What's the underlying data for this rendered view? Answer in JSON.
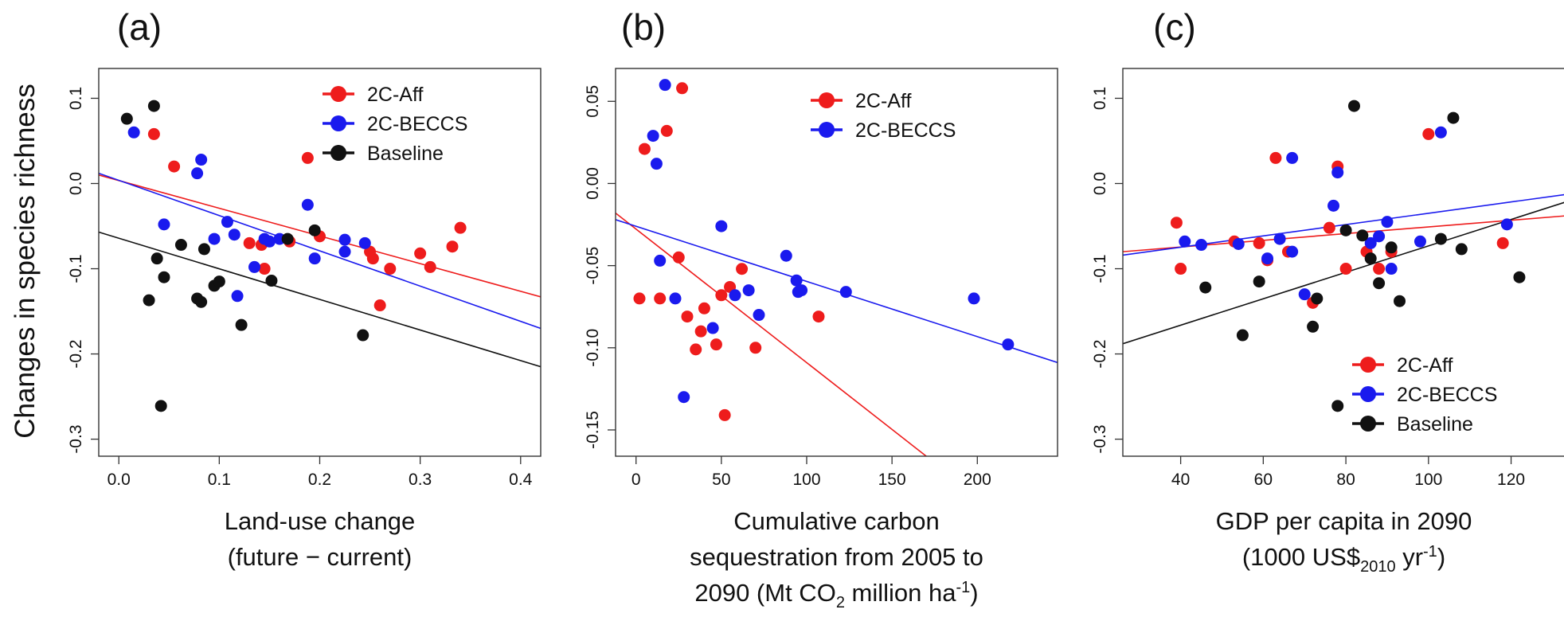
{
  "figure": {
    "ylabel": "Changes in species richness"
  },
  "chart_data": [
    {
      "type": "scatter",
      "panel_label": "(a)",
      "xlabel": [
        "Land-use change",
        "(future − current)"
      ],
      "xlim": [
        -0.02,
        0.42
      ],
      "ylim": [
        -0.32,
        0.135
      ],
      "xticks": [
        0.0,
        0.1,
        0.2,
        0.3,
        0.4
      ],
      "xtick_labels": [
        "0.0",
        "0.1",
        "0.2",
        "0.3",
        "0.4"
      ],
      "yticks": [
        0.1,
        0.0,
        -0.1,
        -0.2,
        -0.3
      ],
      "ytick_labels": [
        "0.1",
        "0.0",
        "-0.1",
        "-0.2",
        "-0.3"
      ],
      "legend": {
        "position": "top-right",
        "entries": [
          "2C-Aff",
          "2C-BECCS",
          "Baseline"
        ]
      },
      "series": [
        {
          "name": "2C-Aff",
          "color": "#ee1c1c",
          "points": [
            [
              0.035,
              0.058
            ],
            [
              0.055,
              0.02
            ],
            [
              0.13,
              -0.07
            ],
            [
              0.142,
              -0.072
            ],
            [
              0.145,
              -0.1
            ],
            [
              0.17,
              -0.068
            ],
            [
              0.188,
              0.03
            ],
            [
              0.2,
              -0.062
            ],
            [
              0.25,
              -0.08
            ],
            [
              0.253,
              -0.088
            ],
            [
              0.26,
              -0.143
            ],
            [
              0.27,
              -0.1
            ],
            [
              0.3,
              -0.082
            ],
            [
              0.31,
              -0.098
            ],
            [
              0.332,
              -0.074
            ],
            [
              0.34,
              -0.052
            ]
          ],
          "fit": {
            "x": [
              -0.02,
              0.42
            ],
            "y": [
              0.01,
              -0.133
            ]
          }
        },
        {
          "name": "2C-BECCS",
          "color": "#1a1aee",
          "points": [
            [
              0.015,
              0.06
            ],
            [
              0.045,
              -0.048
            ],
            [
              0.078,
              0.012
            ],
            [
              0.082,
              0.028
            ],
            [
              0.095,
              -0.065
            ],
            [
              0.108,
              -0.045
            ],
            [
              0.115,
              -0.06
            ],
            [
              0.118,
              -0.132
            ],
            [
              0.135,
              -0.098
            ],
            [
              0.145,
              -0.065
            ],
            [
              0.15,
              -0.068
            ],
            [
              0.16,
              -0.065
            ],
            [
              0.188,
              -0.025
            ],
            [
              0.195,
              -0.088
            ],
            [
              0.225,
              -0.08
            ],
            [
              0.225,
              -0.066
            ],
            [
              0.245,
              -0.07
            ]
          ],
          "fit": {
            "x": [
              -0.02,
              0.42
            ],
            "y": [
              0.012,
              -0.17
            ]
          }
        },
        {
          "name": "Baseline",
          "color": "#111111",
          "points": [
            [
              0.008,
              0.076
            ],
            [
              0.035,
              0.091
            ],
            [
              0.03,
              -0.137
            ],
            [
              0.038,
              -0.088
            ],
            [
              0.042,
              -0.261
            ],
            [
              0.045,
              -0.11
            ],
            [
              0.062,
              -0.072
            ],
            [
              0.078,
              -0.135
            ],
            [
              0.082,
              -0.139
            ],
            [
              0.085,
              -0.077
            ],
            [
              0.095,
              -0.12
            ],
            [
              0.1,
              -0.115
            ],
            [
              0.122,
              -0.166
            ],
            [
              0.152,
              -0.114
            ],
            [
              0.168,
              -0.065
            ],
            [
              0.195,
              -0.055
            ],
            [
              0.243,
              -0.178
            ]
          ],
          "fit": {
            "x": [
              -0.02,
              0.42
            ],
            "y": [
              -0.057,
              -0.215
            ]
          }
        }
      ]
    },
    {
      "type": "scatter",
      "panel_label": "(b)",
      "xlabel": [
        "Cumulative carbon",
        "sequestration from 2005 to"
      ],
      "xlabel_last": {
        "prefix": "2090 (Mt CO",
        "sub": "2",
        "mid": " million ha",
        "sup": "-1",
        "suffix": ")"
      },
      "xlim": [
        -12,
        247
      ],
      "ylim": [
        -0.166,
        0.07
      ],
      "xticks": [
        0,
        50,
        100,
        150,
        200
      ],
      "xtick_labels": [
        "0",
        "50",
        "100",
        "150",
        "200"
      ],
      "yticks": [
        0.05,
        0.0,
        -0.05,
        -0.1,
        -0.15
      ],
      "ytick_labels": [
        "0.05",
        "0.00",
        "-0.05",
        "-0.10",
        "-0.15"
      ],
      "legend": {
        "position": "top-right",
        "entries": [
          "2C-Aff",
          "2C-BECCS"
        ]
      },
      "series": [
        {
          "name": "2C-Aff",
          "color": "#ee1c1c",
          "points": [
            [
              2,
              -0.07
            ],
            [
              5,
              0.021
            ],
            [
              14,
              -0.07
            ],
            [
              18,
              0.032
            ],
            [
              25,
              -0.045
            ],
            [
              27,
              0.058
            ],
            [
              30,
              -0.081
            ],
            [
              35,
              -0.101
            ],
            [
              38,
              -0.09
            ],
            [
              40,
              -0.076
            ],
            [
              47,
              -0.098
            ],
            [
              50,
              -0.068
            ],
            [
              52,
              -0.141
            ],
            [
              55,
              -0.063
            ],
            [
              62,
              -0.052
            ],
            [
              70,
              -0.1
            ],
            [
              107,
              -0.081
            ]
          ],
          "fit": {
            "x": [
              -12,
              175
            ],
            "y": [
              -0.018,
              -0.17
            ]
          }
        },
        {
          "name": "2C-BECCS",
          "color": "#1a1aee",
          "points": [
            [
              10,
              0.029
            ],
            [
              12,
              0.012
            ],
            [
              14,
              -0.047
            ],
            [
              17,
              0.06
            ],
            [
              23,
              -0.07
            ],
            [
              28,
              -0.13
            ],
            [
              45,
              -0.088
            ],
            [
              50,
              -0.026
            ],
            [
              58,
              -0.068
            ],
            [
              66,
              -0.065
            ],
            [
              72,
              -0.08
            ],
            [
              88,
              -0.044
            ],
            [
              94,
              -0.059
            ],
            [
              95,
              -0.066
            ],
            [
              97,
              -0.065
            ],
            [
              123,
              -0.066
            ],
            [
              198,
              -0.07
            ],
            [
              218,
              -0.098
            ]
          ],
          "fit": {
            "x": [
              -12,
              247
            ],
            "y": [
              -0.022,
              -0.109
            ]
          }
        }
      ]
    },
    {
      "type": "scatter",
      "panel_label": "(c)",
      "xlabel": [
        "GDP per capita in 2090"
      ],
      "xlabel_last": {
        "prefix": "(1000 US$",
        "sub": "2010",
        "mid": " yr",
        "sup": "-1",
        "suffix": ")"
      },
      "xlim": [
        26,
        133
      ],
      "ylim": [
        -0.32,
        0.135
      ],
      "xticks": [
        40,
        60,
        80,
        100,
        120
      ],
      "xtick_labels": [
        "40",
        "60",
        "80",
        "100",
        "120"
      ],
      "yticks": [
        0.1,
        0.0,
        -0.1,
        -0.2,
        -0.3
      ],
      "ytick_labels": [
        "0.1",
        "0.0",
        "-0.1",
        "-0.2",
        "-0.3"
      ],
      "legend": {
        "position": "bottom-right",
        "entries": [
          "2C-Aff",
          "2C-BECCS",
          "Baseline"
        ]
      },
      "series": [
        {
          "name": "2C-Aff",
          "color": "#ee1c1c",
          "points": [
            [
              39,
              -0.046
            ],
            [
              40,
              -0.1
            ],
            [
              53,
              -0.068
            ],
            [
              59,
              -0.07
            ],
            [
              61,
              -0.09
            ],
            [
              63,
              0.03
            ],
            [
              66,
              -0.08
            ],
            [
              72,
              -0.14
            ],
            [
              76,
              -0.052
            ],
            [
              78,
              0.02
            ],
            [
              80,
              -0.1
            ],
            [
              85,
              -0.08
            ],
            [
              88,
              -0.1
            ],
            [
              91,
              -0.08
            ],
            [
              100,
              0.058
            ],
            [
              118,
              -0.07
            ]
          ],
          "fit": {
            "x": [
              26,
              133
            ],
            "y": [
              -0.08,
              -0.038
            ]
          }
        },
        {
          "name": "2C-BECCS",
          "color": "#1a1aee",
          "points": [
            [
              41,
              -0.068
            ],
            [
              45,
              -0.072
            ],
            [
              54,
              -0.071
            ],
            [
              61,
              -0.088
            ],
            [
              64,
              -0.065
            ],
            [
              67,
              0.03
            ],
            [
              67,
              -0.08
            ],
            [
              70,
              -0.13
            ],
            [
              77,
              -0.026
            ],
            [
              78,
              0.013
            ],
            [
              86,
              -0.07
            ],
            [
              88,
              -0.062
            ],
            [
              90,
              -0.045
            ],
            [
              91,
              -0.1
            ],
            [
              98,
              -0.068
            ],
            [
              103,
              0.06
            ],
            [
              119,
              -0.048
            ]
          ],
          "fit": {
            "x": [
              26,
              133
            ],
            "y": [
              -0.084,
              -0.013
            ]
          }
        },
        {
          "name": "Baseline",
          "color": "#111111",
          "points": [
            [
              46,
              -0.122
            ],
            [
              55,
              -0.178
            ],
            [
              59,
              -0.115
            ],
            [
              72,
              -0.168
            ],
            [
              73,
              -0.135
            ],
            [
              78,
              -0.261
            ],
            [
              80,
              -0.055
            ],
            [
              82,
              0.091
            ],
            [
              84,
              -0.061
            ],
            [
              86,
              -0.088
            ],
            [
              88,
              -0.117
            ],
            [
              91,
              -0.075
            ],
            [
              93,
              -0.138
            ],
            [
              103,
              -0.065
            ],
            [
              106,
              0.077
            ],
            [
              108,
              -0.077
            ],
            [
              122,
              -0.11
            ]
          ],
          "fit": {
            "x": [
              26,
              133
            ],
            "y": [
              -0.188,
              -0.022
            ]
          }
        }
      ]
    }
  ]
}
